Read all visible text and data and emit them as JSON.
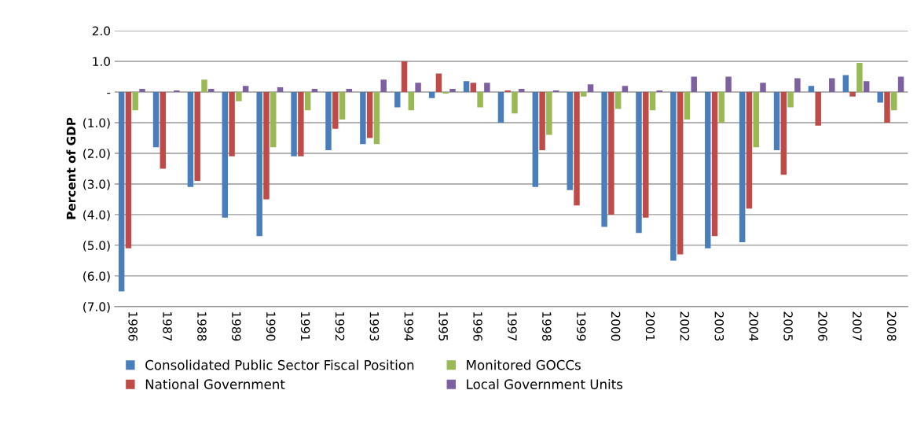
{
  "chart_data": {
    "type": "bar",
    "ylabel": "Percent of GDP",
    "categories": [
      "1986",
      "1987",
      "1988",
      "1989",
      "1990",
      "1991",
      "1992",
      "1993",
      "1994",
      "1995",
      "1996",
      "1997",
      "1998",
      "1999",
      "2000",
      "2001",
      "2002",
      "2003",
      "2004",
      "2005",
      "2006",
      "2007",
      "2008"
    ],
    "series": [
      {
        "name": "Consolidated Public Sector Fiscal Position",
        "color": "#4a7ebb",
        "values": [
          -6.5,
          -1.8,
          -3.1,
          -4.1,
          -4.7,
          -2.1,
          -1.9,
          -1.7,
          -0.5,
          -0.2,
          0.35,
          -1.0,
          -3.1,
          -3.2,
          -4.4,
          -4.6,
          -5.5,
          -5.1,
          -4.9,
          -1.9,
          0.2,
          0.55,
          -0.35
        ]
      },
      {
        "name": "National Government",
        "color": "#be4b48",
        "values": [
          -5.1,
          -2.5,
          -2.9,
          -2.1,
          -3.5,
          -2.1,
          -1.2,
          -1.5,
          1.0,
          0.6,
          0.3,
          0.05,
          -1.9,
          -3.7,
          -4.0,
          -4.1,
          -5.3,
          -4.7,
          -3.8,
          -2.7,
          -1.1,
          -0.15,
          -1.0
        ]
      },
      {
        "name": "Monitored GOCCs",
        "color": "#98b954",
        "values": [
          -0.6,
          0.0,
          0.4,
          -0.3,
          -1.8,
          -0.6,
          -0.9,
          -1.7,
          -0.6,
          -0.05,
          -0.5,
          -0.7,
          -1.4,
          -0.15,
          -0.55,
          -0.6,
          -0.9,
          -1.0,
          -1.8,
          -0.5,
          0.0,
          0.95,
          -0.6
        ]
      },
      {
        "name": "Local Government Units",
        "color": "#7d60a0",
        "values": [
          0.1,
          0.05,
          0.1,
          0.2,
          0.15,
          0.1,
          0.1,
          0.4,
          0.3,
          0.1,
          0.3,
          0.1,
          0.05,
          0.25,
          0.2,
          0.05,
          0.5,
          0.5,
          0.3,
          0.45,
          0.45,
          0.35,
          0.5
        ]
      }
    ],
    "ylim": [
      -7,
      2
    ],
    "yticks": [
      {
        "value": -7,
        "label": "(7.0)"
      },
      {
        "value": -6,
        "label": "(6.0)"
      },
      {
        "value": -5,
        "label": "(5.0)"
      },
      {
        "value": -4,
        "label": "(4.0)"
      },
      {
        "value": -3,
        "label": "(3.0)"
      },
      {
        "value": -2,
        "label": "(2.0)"
      },
      {
        "value": -1,
        "label": "(1.0)"
      },
      {
        "value": 0,
        "label": "-"
      },
      {
        "value": 1,
        "label": "1.0"
      },
      {
        "value": 2,
        "label": "2.0"
      }
    ],
    "grid": "y",
    "legend": "bottom"
  }
}
